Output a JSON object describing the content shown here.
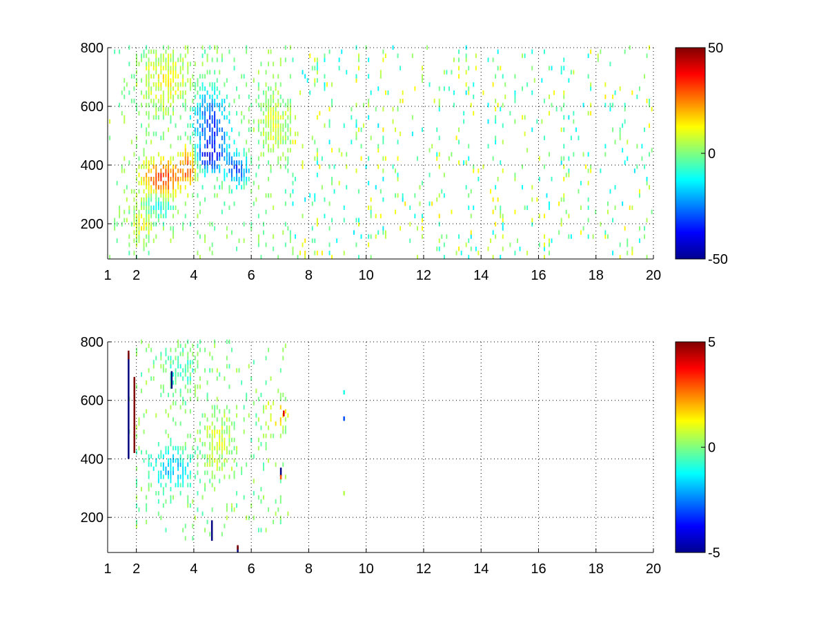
{
  "chart_data": [
    {
      "type": "heatmap",
      "title": "",
      "xlabel": "",
      "ylabel": "",
      "xlim": [
        1,
        20
      ],
      "ylim": [
        80,
        800
      ],
      "x_ticks": [
        1,
        2,
        4,
        6,
        8,
        10,
        12,
        14,
        16,
        18,
        20
      ],
      "x_tick_labels": [
        "1",
        "2",
        "4",
        "6",
        "8",
        "10",
        "12",
        "14",
        "16",
        "18",
        "20"
      ],
      "y_ticks": [
        200,
        400,
        600,
        800
      ],
      "y_tick_labels": [
        "200",
        "400",
        "600",
        "800"
      ],
      "grid": true,
      "grid_style": "dotted",
      "colormap": "jet",
      "clim": [
        -50,
        50
      ],
      "colorbar_ticks": [
        50,
        0,
        -50
      ],
      "colorbar_tick_labels": [
        "50",
        "0",
        "-50"
      ],
      "blobs": [
        {
          "x": 2.9,
          "y": 350,
          "sx": 0.7,
          "sy": 60,
          "v": 35
        },
        {
          "x": 3.8,
          "y": 400,
          "sx": 0.3,
          "sy": 60,
          "v": 30
        },
        {
          "x": 3.0,
          "y": 680,
          "sx": 0.8,
          "sy": 90,
          "v": 12
        },
        {
          "x": 2.2,
          "y": 200,
          "sx": 0.4,
          "sy": 70,
          "v": 10
        },
        {
          "x": 4.6,
          "y": 520,
          "sx": 0.6,
          "sy": 120,
          "v": -35
        },
        {
          "x": 5.5,
          "y": 380,
          "sx": 0.4,
          "sy": 50,
          "v": -30
        },
        {
          "x": 4.5,
          "y": 420,
          "sx": 0.5,
          "sy": 40,
          "v": -25
        },
        {
          "x": 2.7,
          "y": 260,
          "sx": 0.5,
          "sy": 40,
          "v": -15
        },
        {
          "x": 6.8,
          "y": 530,
          "sx": 0.5,
          "sy": 90,
          "v": 8
        }
      ],
      "core_region": {
        "x_min": 1.2,
        "x_max": 7.4,
        "y_min": 80,
        "y_max": 800
      },
      "core_density": 0.8,
      "tail_density": 0.11,
      "tail_value_range": [
        -15,
        15
      ],
      "cell_size": {
        "dx": 0.085,
        "dy": 14
      }
    },
    {
      "type": "heatmap",
      "title": "",
      "xlabel": "",
      "ylabel": "",
      "xlim": [
        1,
        20
      ],
      "ylim": [
        80,
        800
      ],
      "x_ticks": [
        1,
        2,
        4,
        6,
        8,
        10,
        12,
        14,
        16,
        18,
        20
      ],
      "x_tick_labels": [
        "1",
        "2",
        "4",
        "6",
        "8",
        "10",
        "12",
        "14",
        "16",
        "18",
        "20"
      ],
      "y_ticks": [
        200,
        400,
        600,
        800
      ],
      "y_tick_labels": [
        "200",
        "400",
        "600",
        "800"
      ],
      "grid": true,
      "grid_style": "dotted",
      "colormap": "jet",
      "clim": [
        -5,
        5
      ],
      "colorbar_ticks": [
        5,
        0,
        -5
      ],
      "colorbar_tick_labels": [
        "5",
        "0",
        "-5"
      ],
      "blobs": [
        {
          "x": 3.2,
          "y": 360,
          "sx": 0.8,
          "sy": 70,
          "v": -1.8
        },
        {
          "x": 4.8,
          "y": 450,
          "sx": 0.6,
          "sy": 100,
          "v": 0.8
        },
        {
          "x": 3.5,
          "y": 700,
          "sx": 0.6,
          "sy": 70,
          "v": -0.6
        },
        {
          "x": 6.9,
          "y": 550,
          "sx": 0.4,
          "sy": 50,
          "v": 1.8
        }
      ],
      "core_region": {
        "x_min": 1.7,
        "x_max": 7.3,
        "y_min": 120,
        "y_max": 800
      },
      "core_density": 0.55,
      "tail_density": 0.0,
      "tail_value_range": [
        0,
        0
      ],
      "cell_size": {
        "dx": 0.085,
        "dy": 14
      },
      "spikes": [
        {
          "x": 1.7,
          "y0": 400,
          "y1": 760,
          "v": -5
        },
        {
          "x": 1.7,
          "y0": 740,
          "y1": 770,
          "v": 5
        },
        {
          "x": 1.9,
          "y0": 420,
          "y1": 680,
          "v": 5
        },
        {
          "x": 3.2,
          "y0": 640,
          "y1": 700,
          "v": -5
        },
        {
          "x": 4.6,
          "y0": 120,
          "y1": 190,
          "v": -5
        },
        {
          "x": 5.5,
          "y0": 80,
          "y1": 100,
          "v": -5
        },
        {
          "x": 5.5,
          "y0": 90,
          "y1": 105,
          "v": 5
        },
        {
          "x": 7.0,
          "y0": 340,
          "y1": 370,
          "v": -5
        },
        {
          "x": 7.0,
          "y0": 330,
          "y1": 345,
          "v": 3
        },
        {
          "x": 7.1,
          "y0": 545,
          "y1": 565,
          "v": 4
        },
        {
          "x": 9.2,
          "y0": 530,
          "y1": 545,
          "v": -3
        },
        {
          "x": 9.2,
          "y0": 620,
          "y1": 635,
          "v": -1
        },
        {
          "x": 9.2,
          "y0": 275,
          "y1": 290,
          "v": 0.5
        }
      ]
    }
  ]
}
